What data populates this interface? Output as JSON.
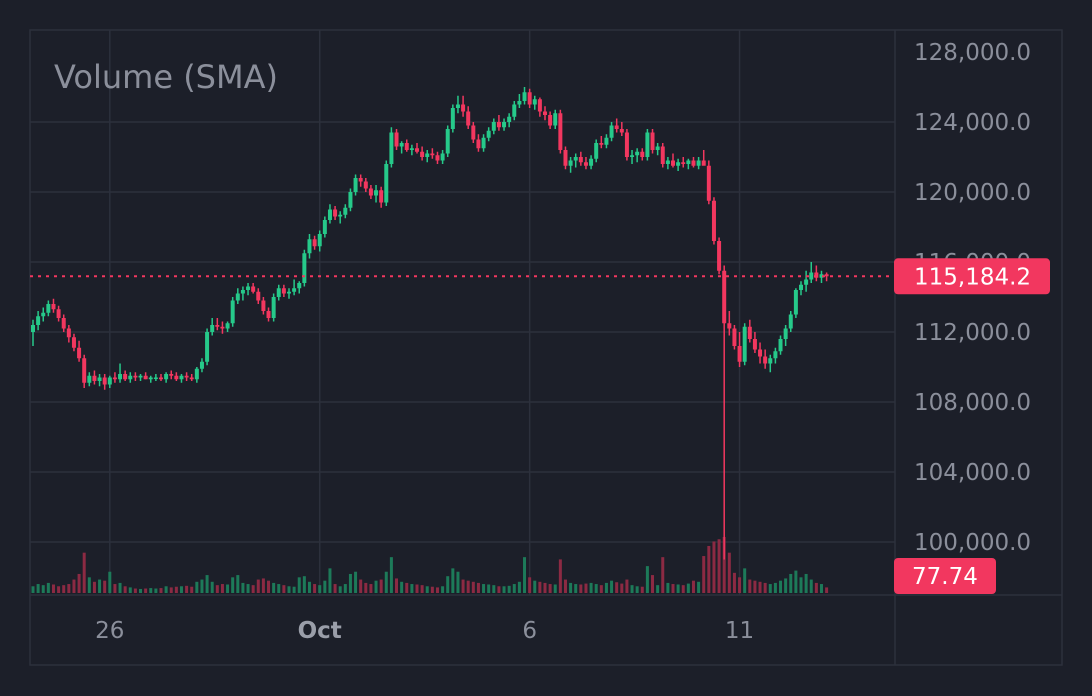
{
  "colors": {
    "background": "#1c1f29",
    "grid": "#2c303c",
    "up": "#26c98a",
    "down": "#f2375f",
    "volume_up": "#1d7a59",
    "volume_down": "#8c2a43",
    "axis_text": "#8b8f9b",
    "badge": "#f2375f"
  },
  "legend": {
    "label": "Volume (SMA)"
  },
  "last_price_label": "115,184.2",
  "last_volume_label": "77.74",
  "chart_data": {
    "type": "candlestick",
    "title": "",
    "ylim": [
      98500,
      130000
    ],
    "y_ticks": [
      128000,
      124000,
      120000,
      116000,
      112000,
      108000,
      104000,
      100000
    ],
    "y_tick_labels": [
      "128,000.0",
      "124,000.0",
      "120,000.0",
      "116,000.0",
      "112,000.0",
      "108,000.0",
      "104,000.0",
      "100,000.0"
    ],
    "x_ticks": [
      {
        "label": "26",
        "index": 15,
        "bold": false
      },
      {
        "label": "Oct",
        "index": 56,
        "bold": true
      },
      {
        "label": "6",
        "index": 97,
        "bold": false
      },
      {
        "label": "11",
        "index": 138,
        "bold": false
      }
    ],
    "last_price": 115184.2,
    "last_volume": 77.74,
    "volume_max": 250,
    "candles": [
      [
        112000,
        112700,
        111200,
        112400,
        30
      ],
      [
        112400,
        113200,
        112100,
        112900,
        40
      ],
      [
        112900,
        113400,
        112600,
        113100,
        35
      ],
      [
        113100,
        113800,
        112900,
        113600,
        45
      ],
      [
        113600,
        113900,
        113100,
        113300,
        38
      ],
      [
        113300,
        113500,
        112600,
        112800,
        30
      ],
      [
        112800,
        113000,
        112000,
        112200,
        35
      ],
      [
        112200,
        112400,
        111400,
        111700,
        40
      ],
      [
        111700,
        111900,
        110900,
        111100,
        60
      ],
      [
        111100,
        111500,
        110300,
        110500,
        85
      ],
      [
        110500,
        110700,
        108800,
        109100,
        180
      ],
      [
        109100,
        109700,
        108900,
        109500,
        70
      ],
      [
        109500,
        109800,
        109000,
        109200,
        50
      ],
      [
        109200,
        109600,
        108900,
        109400,
        60
      ],
      [
        109400,
        109600,
        108700,
        109000,
        55
      ],
      [
        109000,
        109500,
        108800,
        109400,
        95
      ],
      [
        109400,
        109700,
        109100,
        109300,
        40
      ],
      [
        109300,
        110200,
        109100,
        109600,
        45
      ],
      [
        109600,
        109800,
        109200,
        109300,
        30
      ],
      [
        109300,
        109700,
        109100,
        109500,
        25
      ],
      [
        109500,
        109700,
        109200,
        109400,
        20
      ],
      [
        109400,
        109600,
        109200,
        109500,
        18
      ],
      [
        109500,
        109700,
        109300,
        109300,
        20
      ],
      [
        109300,
        109500,
        109100,
        109400,
        22
      ],
      [
        109400,
        109600,
        109200,
        109400,
        20
      ],
      [
        109400,
        109600,
        109200,
        109300,
        22
      ],
      [
        109300,
        109700,
        109100,
        109600,
        30
      ],
      [
        109600,
        109800,
        109300,
        109500,
        25
      ],
      [
        109500,
        109700,
        109200,
        109300,
        28
      ],
      [
        109300,
        109600,
        109100,
        109500,
        30
      ],
      [
        109500,
        109700,
        109200,
        109400,
        32
      ],
      [
        109400,
        109600,
        109200,
        109300,
        28
      ],
      [
        109300,
        110000,
        109100,
        109900,
        50
      ],
      [
        109900,
        110500,
        109700,
        110300,
        60
      ],
      [
        110300,
        112200,
        110100,
        112000,
        80
      ],
      [
        112000,
        112800,
        111800,
        112400,
        50
      ],
      [
        112400,
        112800,
        112100,
        112300,
        35
      ],
      [
        112300,
        112600,
        111900,
        112200,
        40
      ],
      [
        112200,
        112600,
        112000,
        112500,
        38
      ],
      [
        112500,
        114000,
        112300,
        113800,
        70
      ],
      [
        113800,
        114500,
        113600,
        114200,
        80
      ],
      [
        114200,
        114600,
        113800,
        114400,
        45
      ],
      [
        114400,
        114800,
        114100,
        114600,
        40
      ],
      [
        114600,
        114800,
        114200,
        114300,
        35
      ],
      [
        114300,
        114500,
        113600,
        113800,
        60
      ],
      [
        113800,
        114000,
        113000,
        113200,
        65
      ],
      [
        113200,
        113400,
        112600,
        112800,
        55
      ],
      [
        112800,
        114200,
        112600,
        114000,
        45
      ],
      [
        114000,
        114700,
        113800,
        114500,
        40
      ],
      [
        114500,
        114700,
        114000,
        114200,
        35
      ],
      [
        114200,
        114500,
        113900,
        114300,
        30
      ],
      [
        114300,
        115000,
        114100,
        114500,
        28
      ],
      [
        114500,
        114900,
        114200,
        114800,
        70
      ],
      [
        114800,
        116700,
        114600,
        116500,
        75
      ],
      [
        116500,
        117600,
        116200,
        117300,
        50
      ],
      [
        117300,
        117500,
        116700,
        116900,
        40
      ],
      [
        116900,
        117800,
        116600,
        117600,
        35
      ],
      [
        117600,
        118600,
        117400,
        118400,
        55
      ],
      [
        118400,
        119300,
        118200,
        119000,
        110
      ],
      [
        119000,
        119200,
        118400,
        118600,
        40
      ],
      [
        118600,
        118900,
        118200,
        118700,
        30
      ],
      [
        118700,
        119300,
        118500,
        119100,
        40
      ],
      [
        119100,
        120200,
        118900,
        120000,
        85
      ],
      [
        120000,
        121000,
        119800,
        120800,
        95
      ],
      [
        120800,
        121000,
        120300,
        120600,
        60
      ],
      [
        120600,
        120800,
        120000,
        120200,
        45
      ],
      [
        120200,
        120400,
        119600,
        119800,
        40
      ],
      [
        119800,
        120400,
        119400,
        120100,
        55
      ],
      [
        120100,
        120300,
        119100,
        119400,
        60
      ],
      [
        119400,
        121800,
        119200,
        121600,
        95
      ],
      [
        121600,
        123700,
        121400,
        123400,
        160
      ],
      [
        123400,
        123600,
        122400,
        122600,
        65
      ],
      [
        122600,
        122900,
        122200,
        122800,
        50
      ],
      [
        122800,
        123000,
        122300,
        122400,
        45
      ],
      [
        122400,
        122700,
        122100,
        122500,
        40
      ],
      [
        122500,
        122800,
        122200,
        122300,
        38
      ],
      [
        122300,
        122600,
        121800,
        122000,
        35
      ],
      [
        122000,
        122400,
        121700,
        122200,
        30
      ],
      [
        122200,
        122500,
        121900,
        122100,
        28
      ],
      [
        122100,
        122300,
        121600,
        121800,
        25
      ],
      [
        121800,
        122400,
        121600,
        122200,
        30
      ],
      [
        122200,
        123800,
        122000,
        123600,
        75
      ],
      [
        123600,
        125000,
        123400,
        124800,
        110
      ],
      [
        124800,
        125500,
        124500,
        125000,
        95
      ],
      [
        125000,
        125500,
        124300,
        124600,
        60
      ],
      [
        124600,
        124900,
        123600,
        123800,
        55
      ],
      [
        123800,
        124000,
        122800,
        123000,
        50
      ],
      [
        123000,
        123300,
        122300,
        122500,
        45
      ],
      [
        122500,
        123300,
        122300,
        123100,
        40
      ],
      [
        123100,
        123700,
        122900,
        123500,
        38
      ],
      [
        123500,
        124200,
        123300,
        124000,
        35
      ],
      [
        124000,
        124400,
        123500,
        123700,
        30
      ],
      [
        123700,
        124200,
        123500,
        124000,
        30
      ],
      [
        124000,
        124500,
        123700,
        124300,
        32
      ],
      [
        124300,
        125200,
        124100,
        125000,
        40
      ],
      [
        125000,
        125600,
        124800,
        125200,
        50
      ],
      [
        125200,
        126000,
        125000,
        125700,
        160
      ],
      [
        125700,
        125900,
        124800,
        125000,
        70
      ],
      [
        125000,
        125500,
        124700,
        125300,
        55
      ],
      [
        125300,
        125400,
        124300,
        124600,
        50
      ],
      [
        124600,
        124900,
        124100,
        124400,
        45
      ],
      [
        124400,
        124600,
        123600,
        123800,
        40
      ],
      [
        123800,
        124700,
        123600,
        124500,
        38
      ],
      [
        124500,
        124700,
        122200,
        122400,
        150
      ],
      [
        122400,
        122600,
        121300,
        121500,
        60
      ],
      [
        121500,
        122000,
        121100,
        121800,
        45
      ],
      [
        121800,
        122200,
        121400,
        122000,
        40
      ],
      [
        122000,
        122300,
        121500,
        121700,
        38
      ],
      [
        121700,
        122000,
        121300,
        121500,
        42
      ],
      [
        121500,
        122100,
        121300,
        121900,
        45
      ],
      [
        121900,
        123000,
        121700,
        122800,
        40
      ],
      [
        122800,
        123200,
        122500,
        122700,
        35
      ],
      [
        122700,
        123300,
        122500,
        123100,
        45
      ],
      [
        123100,
        124000,
        122900,
        123800,
        55
      ],
      [
        123800,
        124200,
        123400,
        123600,
        48
      ],
      [
        123600,
        124000,
        123200,
        123400,
        42
      ],
      [
        123400,
        123600,
        121800,
        122000,
        60
      ],
      [
        122000,
        122400,
        121600,
        122100,
        35
      ],
      [
        122100,
        122500,
        121700,
        122300,
        30
      ],
      [
        122300,
        122500,
        121800,
        122000,
        28
      ],
      [
        122000,
        123600,
        121800,
        123400,
        120
      ],
      [
        123400,
        123600,
        122200,
        122400,
        80
      ],
      [
        122400,
        122800,
        122100,
        122600,
        35
      ],
      [
        122600,
        122800,
        121400,
        121600,
        160
      ],
      [
        121600,
        122000,
        121300,
        121800,
        45
      ],
      [
        121800,
        122200,
        121400,
        121500,
        40
      ],
      [
        121500,
        121900,
        121200,
        121700,
        38
      ],
      [
        121700,
        122000,
        121400,
        121600,
        35
      ],
      [
        121600,
        121900,
        121300,
        121800,
        42
      ],
      [
        121800,
        122000,
        121400,
        121500,
        55
      ],
      [
        121500,
        122000,
        121300,
        121800,
        50
      ],
      [
        121800,
        122400,
        121600,
        121500,
        165
      ],
      [
        121500,
        121800,
        119300,
        119500,
        210
      ],
      [
        119500,
        119700,
        117000,
        117200,
        230
      ],
      [
        117200,
        117400,
        115300,
        115500,
        240
      ],
      [
        115500,
        115800,
        99000,
        112500,
        250
      ],
      [
        112500,
        113200,
        111800,
        112200,
        180
      ],
      [
        112200,
        112400,
        111000,
        111200,
        90
      ],
      [
        111200,
        112000,
        110000,
        110300,
        70
      ],
      [
        110300,
        112500,
        110100,
        112300,
        110
      ],
      [
        112300,
        112700,
        111400,
        111600,
        60
      ],
      [
        111600,
        112000,
        110800,
        111000,
        55
      ],
      [
        111000,
        111400,
        110200,
        110600,
        50
      ],
      [
        110600,
        111000,
        109900,
        110200,
        45
      ],
      [
        110200,
        110700,
        109700,
        110500,
        40
      ],
      [
        110500,
        111100,
        110200,
        110900,
        45
      ],
      [
        110900,
        111800,
        110700,
        111600,
        55
      ],
      [
        111600,
        112400,
        111200,
        112200,
        65
      ],
      [
        112200,
        113200,
        112000,
        113000,
        85
      ],
      [
        113000,
        114500,
        112800,
        114400,
        100
      ],
      [
        114400,
        114900,
        114100,
        114700,
        70
      ],
      [
        114700,
        115500,
        114300,
        115000,
        85
      ],
      [
        115000,
        116000,
        114800,
        115400,
        60
      ],
      [
        115400,
        115800,
        114900,
        115100,
        45
      ],
      [
        115100,
        115500,
        114800,
        115300,
        40
      ],
      [
        115300,
        115400,
        114900,
        115184,
        25
      ]
    ]
  }
}
